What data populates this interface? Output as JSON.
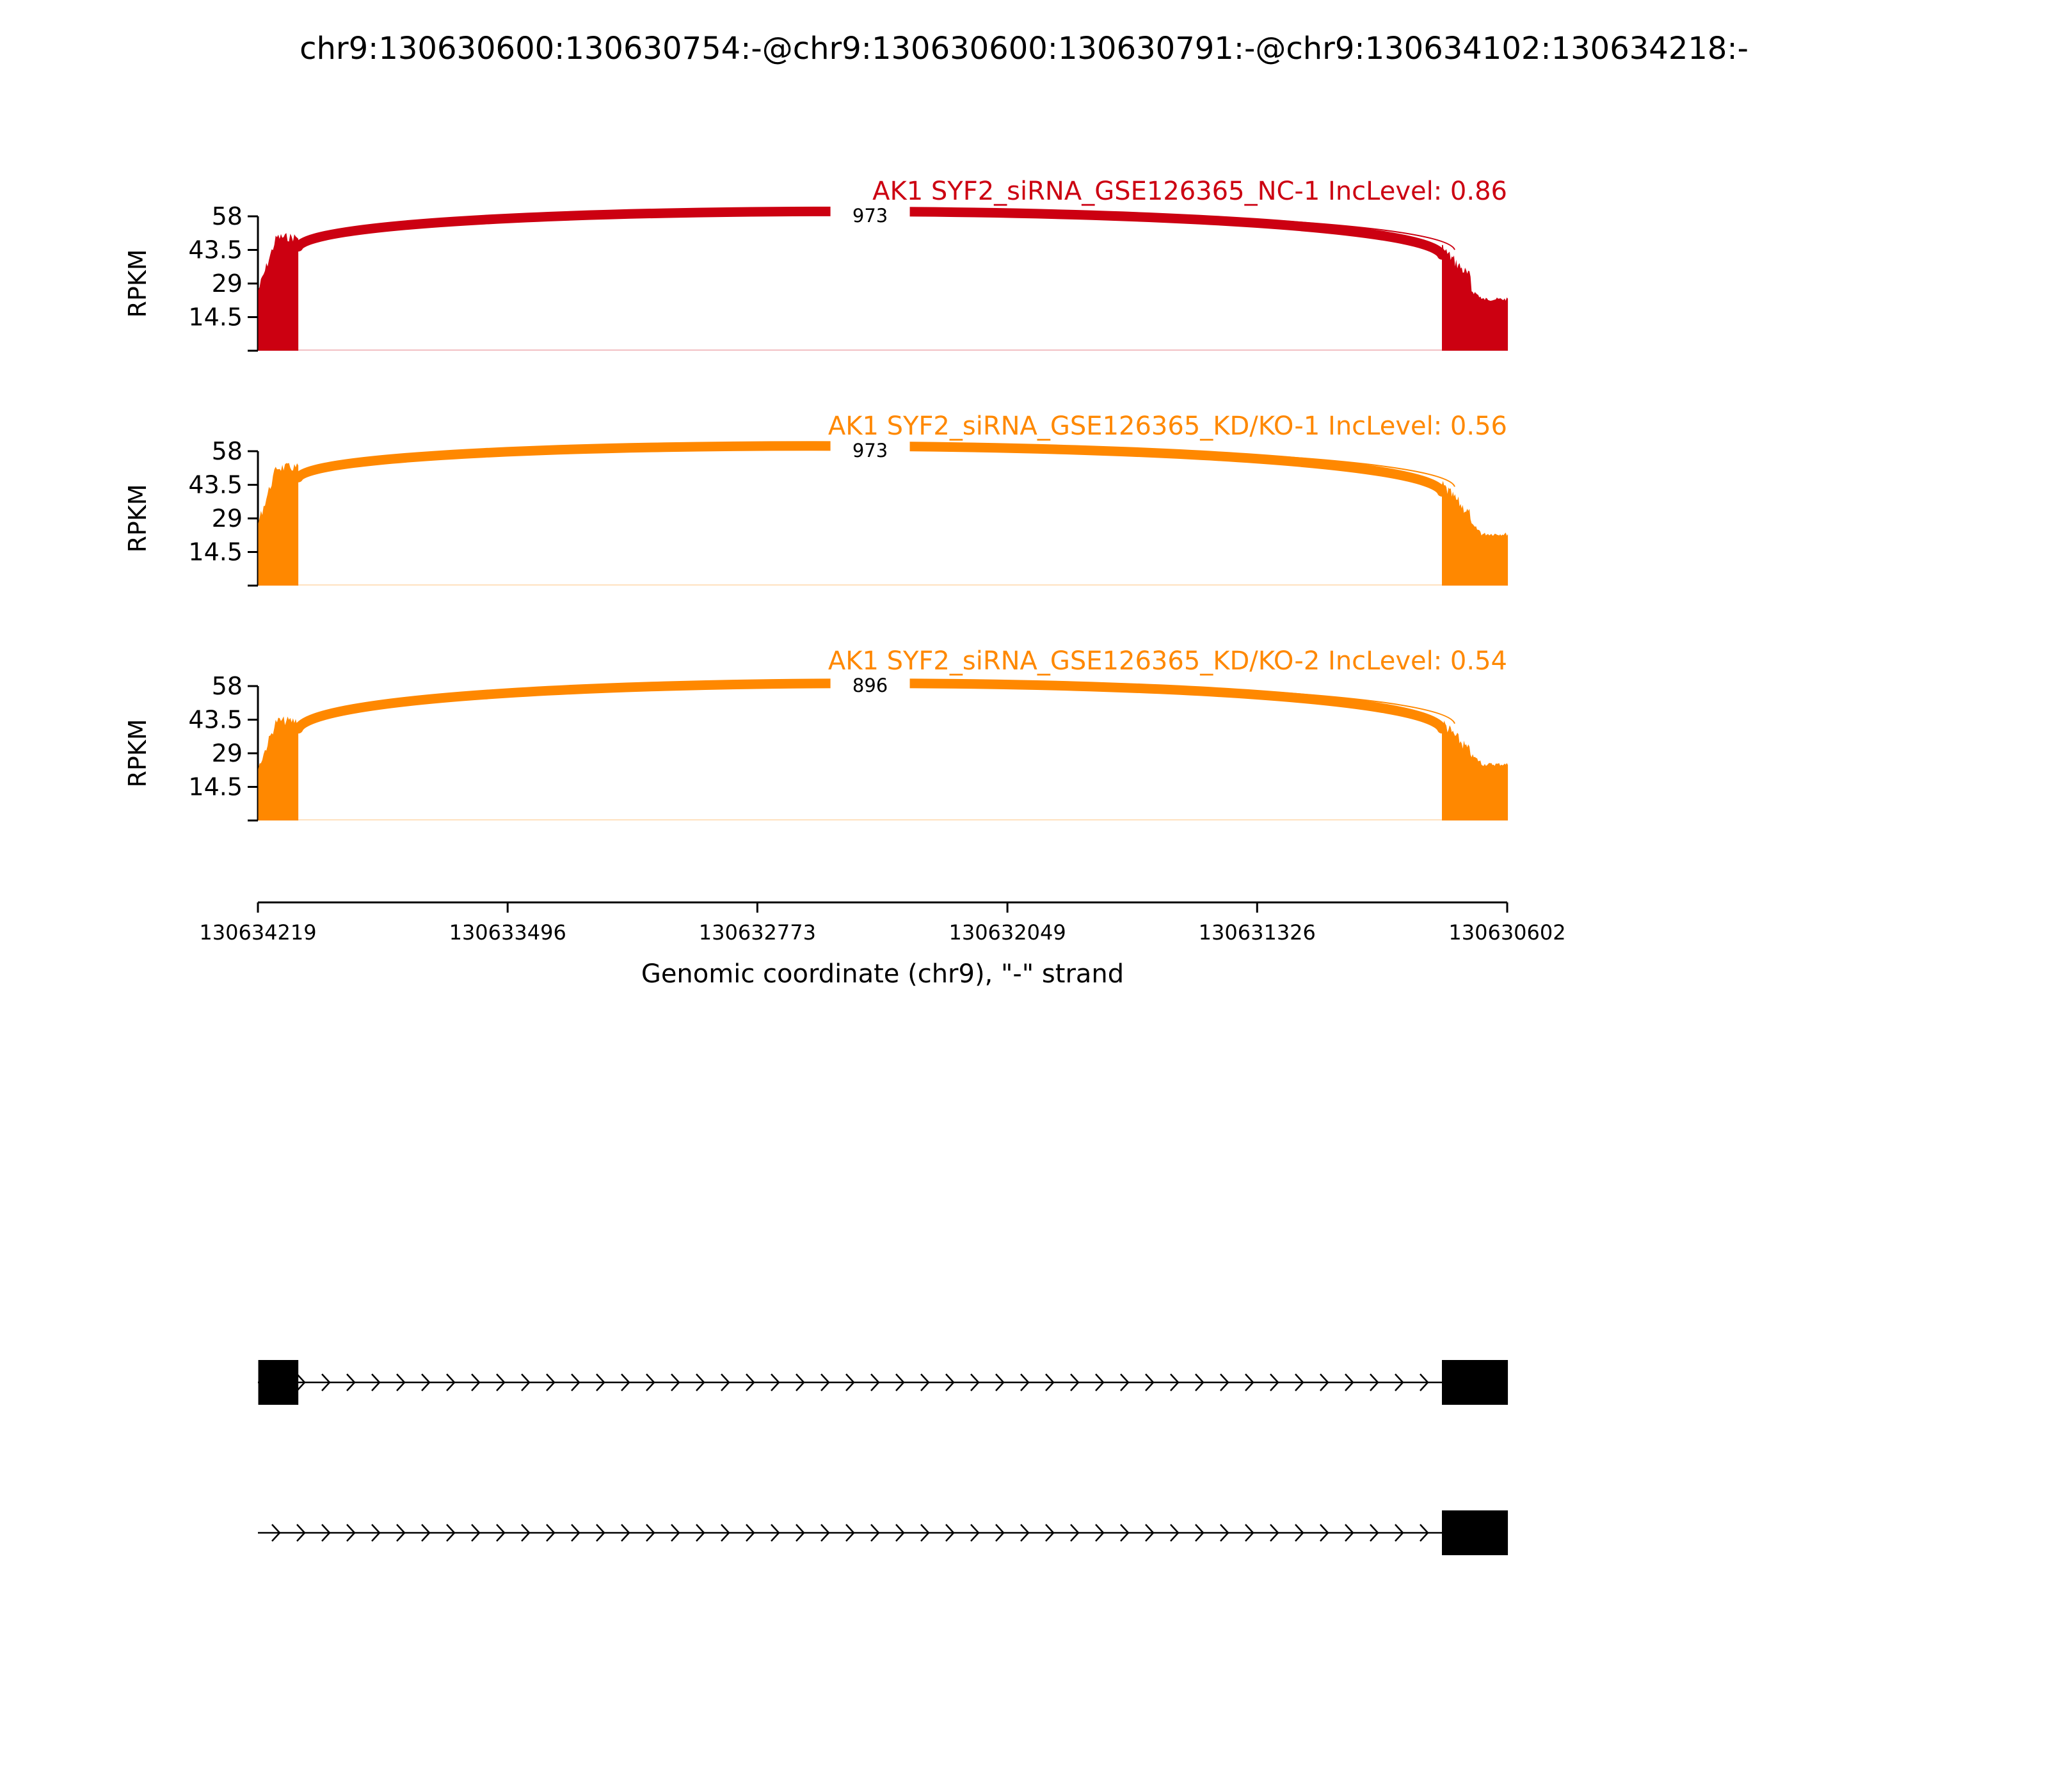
{
  "title": "chr9:130630600:130630754:-@chr9:130630600:130630791:-@chr9:130634102:130634218:-",
  "chart_data": {
    "type": "area",
    "subtype": "sashimi",
    "title": "chr9:130630600:130630754:-@chr9:130630600:130630791:-@chr9:130634102:130634218:-",
    "ylabel": "RPKM",
    "yticks": [
      "14.5",
      "29",
      "43.5",
      "58"
    ],
    "ylim": [
      0,
      58
    ],
    "xlabel": "Genomic coordinate (chr9), \"-\" strand",
    "xticks": [
      "130634219",
      "130633496",
      "130632773",
      "130632049",
      "130631326",
      "130630602"
    ],
    "xlim": [
      130634219,
      130630602
    ],
    "exons": [
      {
        "start": 130634218,
        "end": 130634102
      },
      {
        "start": 130630791,
        "end": 130630600
      }
    ],
    "panels": [
      {
        "label": "AK1 SYF2_siRNA_GSE126365_NC-1 IncLevel: 0.86",
        "color": "#cc0011",
        "junction_count": "973",
        "exon1_peak": 51,
        "exon2_peak": 47,
        "exon2_tail": 23
      },
      {
        "label": "AK1 SYF2_siRNA_GSE126365_KD/KO-1 IncLevel: 0.56",
        "color": "#ff8800",
        "junction_count": "973",
        "exon1_peak": 53,
        "exon2_peak": 46,
        "exon2_tail": 23
      },
      {
        "label": "AK1 SYF2_siRNA_GSE126365_KD/KO-2 IncLevel: 0.54",
        "color": "#ff8800",
        "junction_count": "896",
        "exon1_peak": 45,
        "exon2_peak": 45,
        "exon2_tail": 25
      }
    ],
    "transcripts": [
      {
        "exons": [
          "130634218-130634102",
          "130630791-130630600"
        ]
      },
      {
        "exons": [
          "130630791-130630600"
        ]
      }
    ],
    "grid": false,
    "legend": "none"
  }
}
